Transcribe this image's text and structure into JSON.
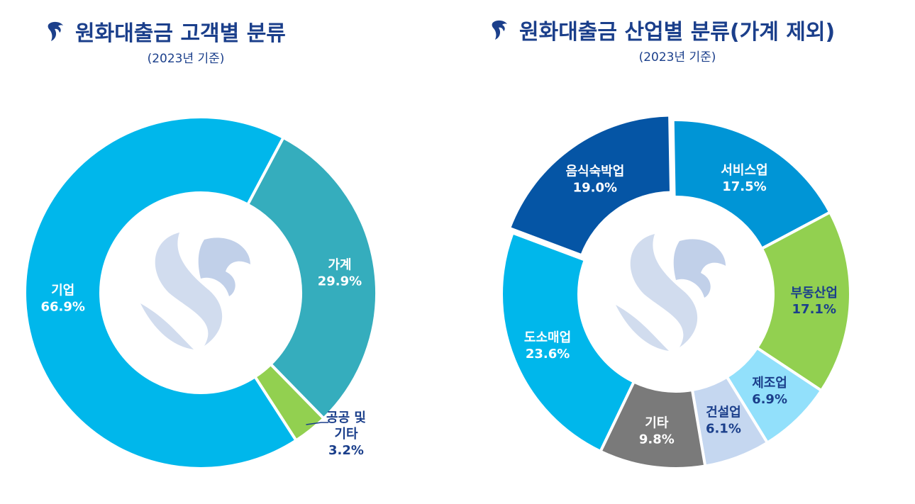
{
  "colors": {
    "title": "#1b3f8b",
    "watermark": "#c9d6ec"
  },
  "left_panel": {
    "title": "원화대출금 고객별 분류",
    "subtitle": "(2023년 기준)",
    "logo_icon": "shinhan-logo-icon"
  },
  "right_panel": {
    "title": "원화대출금 산업별 분류(가계 제외)",
    "subtitle": "(2023년 기준)",
    "logo_icon": "shinhan-logo-icon"
  },
  "chart_data": [
    {
      "type": "pie",
      "variant": "donut",
      "title": "원화대출금 고객별 분류",
      "subtitle": "(2023년 기준)",
      "slices": [
        {
          "label": "가계",
          "value": 29.9,
          "value_text": "29.9%",
          "color": "#35adbd",
          "text_color": "#ffffff"
        },
        {
          "label": "공공 및 기타",
          "label_lines": [
            "공공 및",
            "기타"
          ],
          "value": 3.2,
          "value_text": "3.2%",
          "color": "#92d050",
          "text_color": "#1b3f8b"
        },
        {
          "label": "기업",
          "value": 66.9,
          "value_text": "66.9%",
          "color": "#00b7eb",
          "text_color": "#ffffff"
        }
      ]
    },
    {
      "type": "pie",
      "variant": "donut",
      "title": "원화대출금 산업별 분류(가계 제외)",
      "subtitle": "(2023년 기준)",
      "slices": [
        {
          "label": "서비스업",
          "value": 17.5,
          "value_text": "17.5%",
          "color": "#0095d6",
          "text_color": "#ffffff"
        },
        {
          "label": "부동산업",
          "value": 17.1,
          "value_text": "17.1%",
          "color": "#92d050",
          "text_color": "#1b3f8b"
        },
        {
          "label": "제조업",
          "value": 6.9,
          "value_text": "6.9%",
          "color": "#92e0fb",
          "text_color": "#1b3f8b"
        },
        {
          "label": "건설업",
          "value": 6.1,
          "value_text": "6.1%",
          "color": "#c5d7f0",
          "text_color": "#1b3f8b"
        },
        {
          "label": "기타",
          "value": 9.8,
          "value_text": "9.8%",
          "color": "#7a7a7a",
          "text_color": "#ffffff"
        },
        {
          "label": "도소매업",
          "value": 23.6,
          "value_text": "23.6%",
          "color": "#00b7eb",
          "text_color": "#ffffff"
        },
        {
          "label": "음식숙박업",
          "value": 19.0,
          "value_text": "19.0%",
          "color": "#0555a5",
          "text_color": "#ffffff"
        }
      ]
    }
  ]
}
